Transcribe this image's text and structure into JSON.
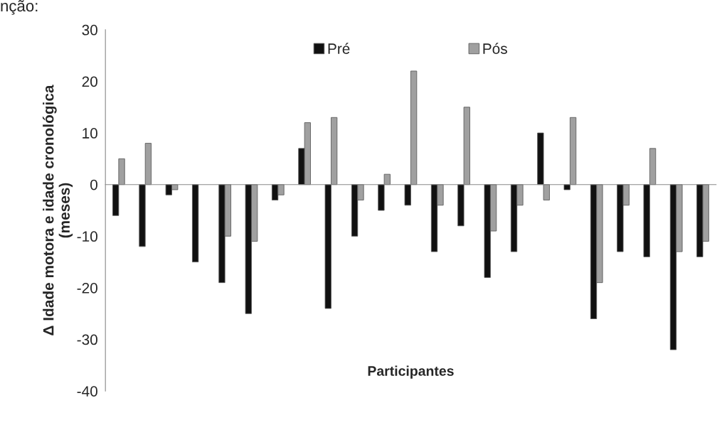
{
  "chart_data": {
    "type": "bar",
    "xlabel": "Participantes",
    "ylabel": "Δ Idade motora e idade cronológica\n(meses)",
    "annotations": [
      "nção:"
    ],
    "categories": [
      null,
      null,
      null,
      null,
      null,
      null,
      null,
      null,
      null,
      null,
      null,
      null,
      null,
      null,
      null,
      null,
      null,
      null,
      null,
      null,
      null,
      null,
      null
    ],
    "series": [
      {
        "name": "Pré",
        "color": "#111111",
        "values": [
          -6,
          -12,
          -2,
          -15,
          -19,
          -25,
          -3,
          7,
          -24,
          -10,
          -5,
          -4,
          -13,
          -8,
          -18,
          -13,
          10,
          -1,
          -26,
          -13,
          -14,
          -32,
          -14
        ]
      },
      {
        "name": "Pós",
        "color": "#a0a0a0",
        "values": [
          5,
          8,
          -1,
          null,
          -10,
          -11,
          -2,
          12,
          13,
          -3,
          2,
          22,
          -4,
          15,
          -9,
          -4,
          -3,
          13,
          -19,
          -4,
          7,
          -13,
          -11
        ]
      }
    ],
    "ylim": [
      -40,
      30
    ],
    "yticks": [
      -40,
      -30,
      -20,
      -10,
      0,
      10,
      20,
      30
    ],
    "legend": "top",
    "tick_labels": "y"
  }
}
